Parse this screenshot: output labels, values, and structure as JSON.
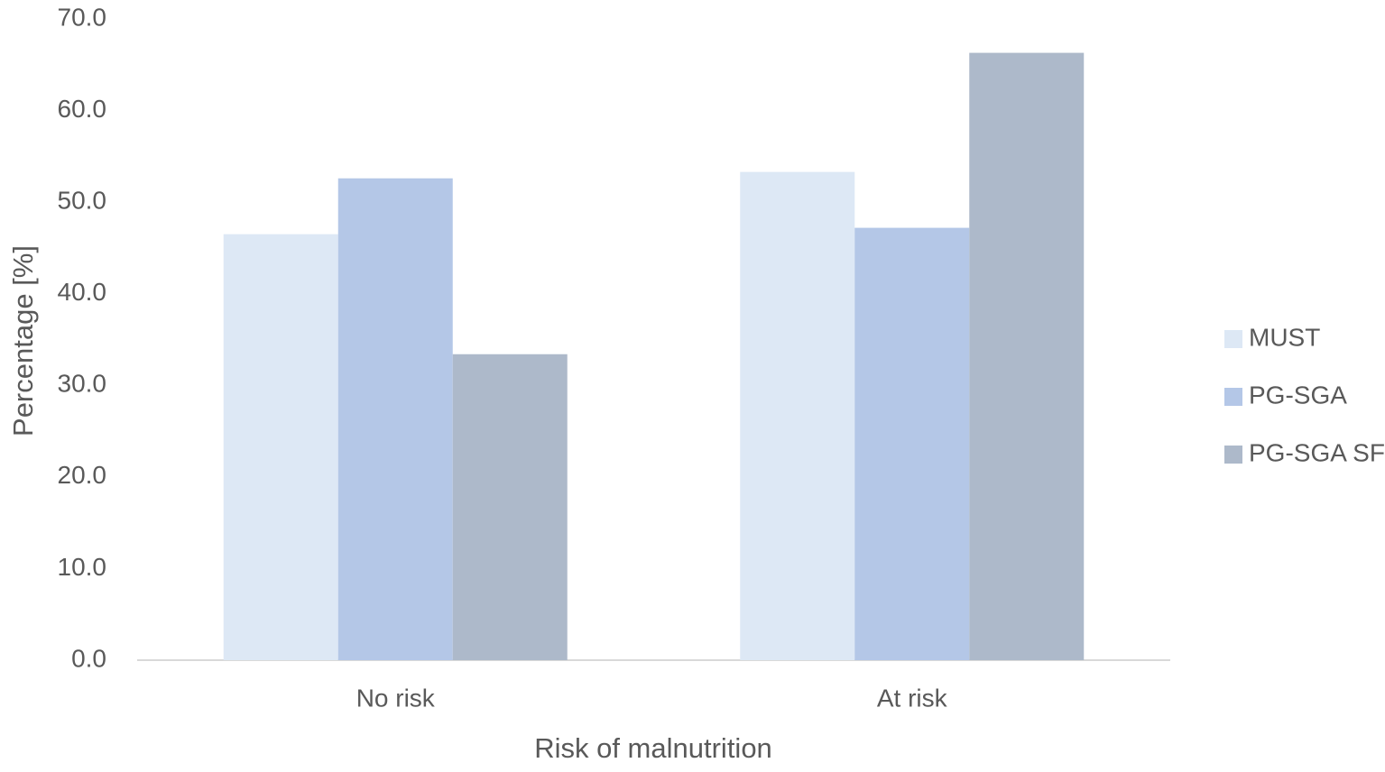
{
  "chart_data": {
    "type": "bar",
    "x_label": "Risk of malnutrition",
    "y_label": "Percentage [%]",
    "categories": [
      "No risk",
      "At risk"
    ],
    "series": [
      {
        "name": "MUST",
        "color": "#dde8f5",
        "values": [
          46.5,
          53.3
        ]
      },
      {
        "name": "PG-SGA",
        "color": "#b4c7e7",
        "values": [
          52.6,
          47.2
        ]
      },
      {
        "name": "PG-SGA SF",
        "color": "#adb9ca",
        "values": [
          33.4,
          66.3
        ]
      }
    ],
    "ylim": [
      0,
      70
    ],
    "yticks": [
      {
        "value": 0,
        "label": "0.0"
      },
      {
        "value": 10,
        "label": "10.0"
      },
      {
        "value": 20,
        "label": "20.0"
      },
      {
        "value": 30,
        "label": "30.0"
      },
      {
        "value": 40,
        "label": "40.0"
      },
      {
        "value": 50,
        "label": "50.0"
      },
      {
        "value": 60,
        "label": "60.0"
      },
      {
        "value": 70,
        "label": "70.0"
      }
    ],
    "grid": false,
    "legend_position": "right"
  }
}
